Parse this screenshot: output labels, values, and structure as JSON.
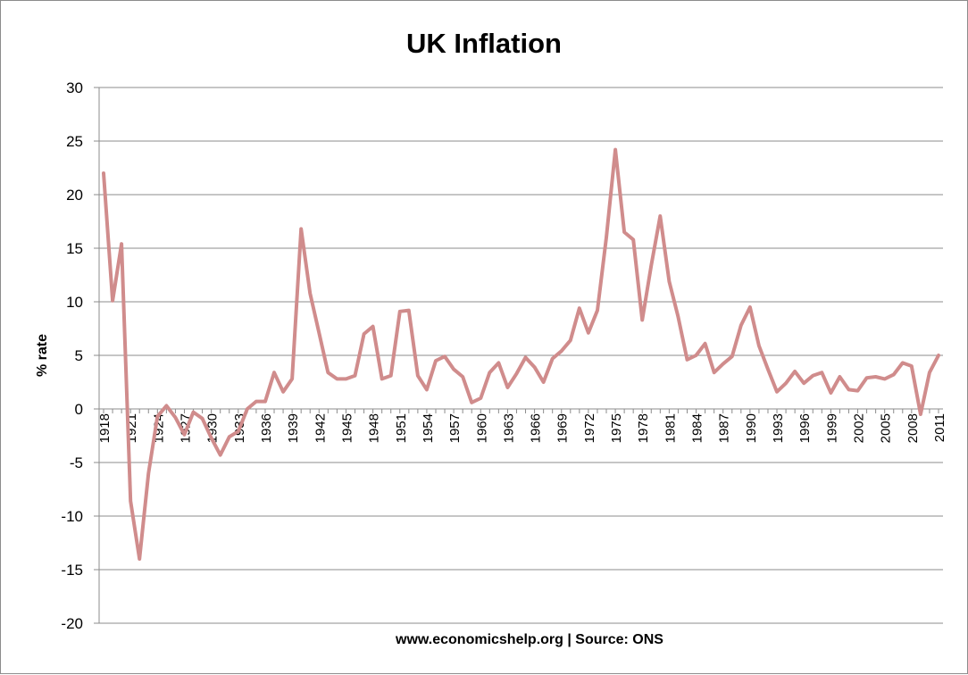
{
  "chart_data": {
    "type": "line",
    "title": "UK Inflation",
    "ylabel": "% rate",
    "xlabel": "",
    "source_note": "www.economicshelp.org | Source: ONS",
    "ylim": [
      -20,
      30
    ],
    "yticks": [
      30,
      25,
      20,
      15,
      10,
      5,
      0,
      -5,
      -10,
      -15,
      -20
    ],
    "grid": true,
    "legend": "none",
    "series_color": "#d08c8c",
    "x_tick_labels": [
      "1918",
      "1921",
      "1924",
      "1927",
      "1930",
      "1933",
      "1936",
      "1939",
      "1942",
      "1945",
      "1948",
      "1951",
      "1954",
      "1957",
      "1960",
      "1963",
      "1966",
      "1969",
      "1972",
      "1975",
      "1978",
      "1981",
      "1984",
      "1987",
      "1990",
      "1993",
      "1996",
      "1999",
      "2002",
      "2005",
      "2008",
      "2011"
    ],
    "x": [
      1918,
      1919,
      1920,
      1921,
      1922,
      1923,
      1924,
      1925,
      1926,
      1927,
      1928,
      1929,
      1930,
      1931,
      1932,
      1933,
      1934,
      1935,
      1936,
      1937,
      1938,
      1939,
      1940,
      1941,
      1942,
      1943,
      1944,
      1945,
      1946,
      1947,
      1948,
      1949,
      1950,
      1951,
      1952,
      1953,
      1954,
      1955,
      1956,
      1957,
      1958,
      1959,
      1960,
      1961,
      1962,
      1963,
      1964,
      1965,
      1966,
      1967,
      1968,
      1969,
      1970,
      1971,
      1972,
      1973,
      1974,
      1975,
      1976,
      1977,
      1978,
      1979,
      1980,
      1981,
      1982,
      1983,
      1984,
      1985,
      1986,
      1987,
      1988,
      1989,
      1990,
      1991,
      1992,
      1993,
      1994,
      1995,
      1996,
      1997,
      1998,
      1999,
      2000,
      2001,
      2002,
      2003,
      2004,
      2005,
      2006,
      2007,
      2008,
      2009,
      2010,
      2011
    ],
    "series": [
      {
        "values": [
          22.0,
          10.1,
          15.4,
          -8.6,
          -14.0,
          -6.0,
          -0.7,
          0.3,
          -0.8,
          -2.4,
          -0.3,
          -0.9,
          -2.7,
          -4.3,
          -2.6,
          -2.1,
          0.0,
          0.7,
          0.7,
          3.4,
          1.6,
          2.8,
          16.8,
          10.8,
          7.1,
          3.4,
          2.8,
          2.8,
          3.1,
          7.0,
          7.7,
          2.8,
          3.1,
          9.1,
          9.2,
          3.1,
          1.8,
          4.5,
          4.9,
          3.7,
          3.0,
          0.6,
          1.0,
          3.4,
          4.3,
          2.0,
          3.3,
          4.8,
          3.9,
          2.5,
          4.7,
          5.4,
          6.4,
          9.4,
          7.1,
          9.2,
          16.0,
          24.2,
          16.5,
          15.8,
          8.3,
          13.4,
          18.0,
          11.9,
          8.6,
          4.6,
          5.0,
          6.1,
          3.4,
          4.2,
          4.9,
          7.8,
          9.5,
          5.9,
          3.7,
          1.6,
          2.4,
          3.5,
          2.4,
          3.1,
          3.4,
          1.5,
          3.0,
          1.8,
          1.7,
          2.9,
          3.0,
          2.8,
          3.2,
          4.3,
          4.0,
          -0.5,
          3.4,
          5.0
        ]
      }
    ]
  }
}
